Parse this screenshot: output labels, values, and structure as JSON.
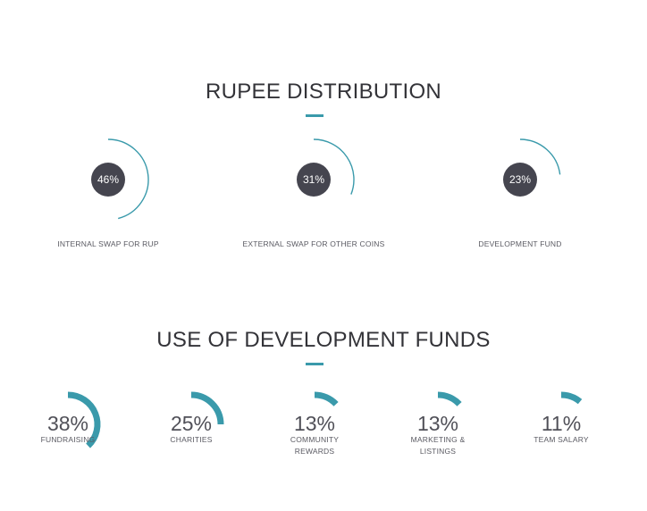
{
  "distribution": {
    "title": "RUPEE DISTRIBUTION"
  },
  "funds": {
    "title": "USE OF DEVELOPMENT FUNDS"
  },
  "colors": {
    "accent": "#3a9aab",
    "dark_circle": "#45454f"
  },
  "chart_data": [
    {
      "type": "pie",
      "title": "RUPEE DISTRIBUTION",
      "categories": [
        "INTERNAL SWAP FOR RUP",
        "EXTERNAL SWAP FOR OTHER COINS",
        "DEVELOPMENT FUND"
      ],
      "values": [
        46,
        31,
        23
      ],
      "labels": [
        "46%",
        "31%",
        "23%"
      ]
    },
    {
      "type": "pie",
      "title": "USE OF DEVELOPMENT FUNDS",
      "categories": [
        "FUNDRAISING",
        "CHARITIES",
        "COMMUNITY REWARDS",
        "MARKETING & LISTINGS",
        "TEAM SALARY"
      ],
      "label_lines": [
        [
          "FUNDRAISING"
        ],
        [
          "CHARITIES"
        ],
        [
          "COMMUNITY",
          "REWARDS"
        ],
        [
          "MARKETING &",
          "LISTINGS"
        ],
        [
          "TEAM SALARY"
        ]
      ],
      "values": [
        38,
        25,
        13,
        13,
        11
      ],
      "labels": [
        "38%",
        "25%",
        "13%",
        "13%",
        "11%"
      ]
    }
  ]
}
